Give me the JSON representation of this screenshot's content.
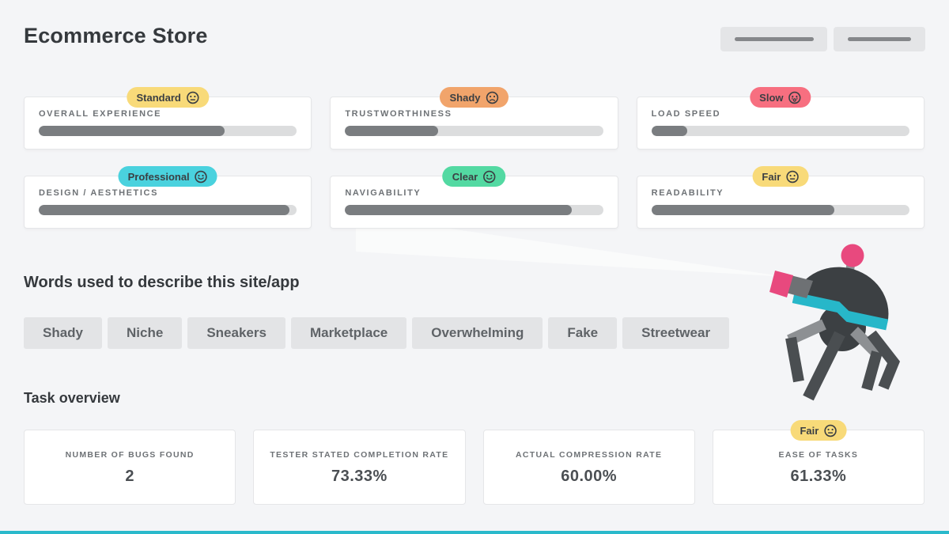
{
  "page": {
    "background": "#f4f5f7",
    "accent_teal": "#2ab9cb",
    "colors": {
      "card_bg": "#ffffff",
      "progress_track": "#dcddde",
      "progress_fill": "#7a7d80",
      "tag_bg": "#e3e4e6",
      "text_dark": "#35393d",
      "text_muted": "#6e7276",
      "robot_pink": "#e8497e",
      "robot_dark": "#3c4043",
      "robot_gray": "#8d9093"
    }
  },
  "header": {
    "title": "Ecommerce Store",
    "actions": [
      {
        "type": "redacted-bar-button"
      },
      {
        "type": "redacted-bar-button"
      }
    ]
  },
  "ratings": [
    {
      "label": "OVERALL EXPERIENCE",
      "badge": "Standard",
      "face": "neutral",
      "badge_color": "#f8da79",
      "percent": 72
    },
    {
      "label": "TRUSTWORTHINESS",
      "badge": "Shady",
      "face": "sad",
      "badge_color": "#f1a46b",
      "percent": 36
    },
    {
      "label": "LOAD SPEED",
      "badge": "Slow",
      "face": "crying",
      "badge_color": "#f76f80",
      "percent": 14
    },
    {
      "label": "DESIGN / AESTHETICS",
      "badge": "Professional",
      "face": "happy",
      "badge_color": "#4ad2de",
      "percent": 97
    },
    {
      "label": "NAVIGABILITY",
      "badge": "Clear",
      "face": "happy",
      "badge_color": "#53d9a2",
      "percent": 88
    },
    {
      "label": "READABILITY",
      "badge": "Fair",
      "face": "neutral",
      "badge_color": "#f8da79",
      "percent": 71
    }
  ],
  "words": {
    "title": "Words used to describe this site/app",
    "tags": [
      "Shady",
      "Niche",
      "Sneakers",
      "Marketplace",
      "Overwhelming",
      "Fake",
      "Streetwear"
    ]
  },
  "tasks": {
    "title": "Task overview",
    "stats": [
      {
        "label": "NUMBER OF BUGS FOUND",
        "value": "2"
      },
      {
        "label": "TESTER STATED COMPLETION RATE",
        "value": "73.33%"
      },
      {
        "label": "ACTUAL COMPRESSION RATE",
        "value": "60.00%"
      },
      {
        "label": "EASE OF TASKS",
        "value": "61.33%",
        "badge": "Fair",
        "face": "neutral",
        "badge_color": "#f8da79"
      }
    ]
  }
}
